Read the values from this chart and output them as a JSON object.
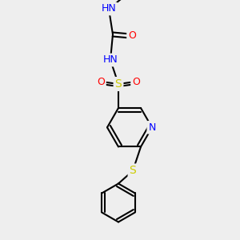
{
  "background_color": "#eeeeee",
  "bond_color": "#000000",
  "atom_colors": {
    "N": "#0000ff",
    "O": "#ff0000",
    "S": "#cccc00",
    "H": "#4a9090"
  },
  "figsize": [
    3.0,
    3.0
  ],
  "dpi": 100,
  "bond_lw": 1.5,
  "font_size": 9
}
